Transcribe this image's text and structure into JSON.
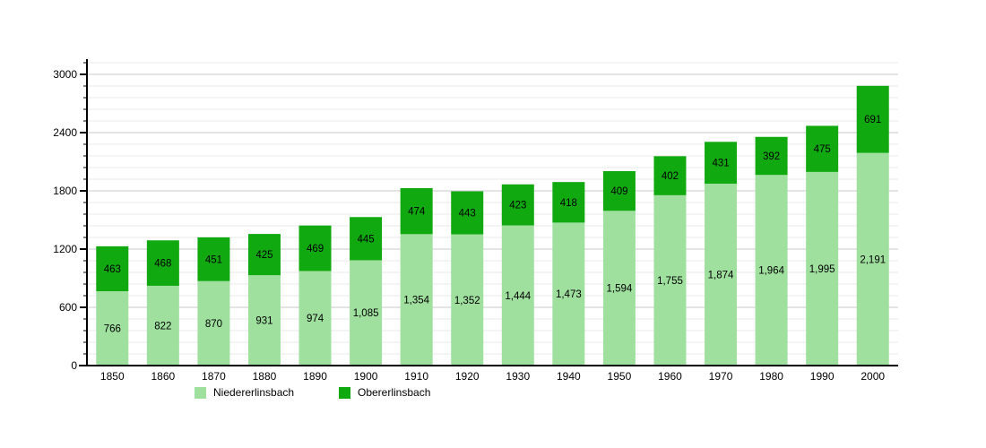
{
  "chart_data": {
    "type": "bar",
    "stacked": true,
    "title": "",
    "xlabel": "",
    "ylabel": "",
    "categories": [
      "1850",
      "1860",
      "1870",
      "1880",
      "1890",
      "1900",
      "1910",
      "1920",
      "1930",
      "1940",
      "1950",
      "1960",
      "1970",
      "1980",
      "1990",
      "2000"
    ],
    "series": [
      {
        "name": "Niedererlinsbach",
        "color": "#9fe09f",
        "values": [
          766,
          822,
          870,
          931,
          974,
          1085,
          1354,
          1352,
          1444,
          1473,
          1594,
          1755,
          1874,
          1964,
          1995,
          2191
        ]
      },
      {
        "name": "Obererlinsbach",
        "color": "#10a910",
        "values": [
          463,
          468,
          451,
          425,
          469,
          445,
          474,
          443,
          423,
          418,
          409,
          402,
          431,
          392,
          475,
          691
        ]
      }
    ],
    "value_labels": [
      [
        "766",
        "822",
        "870",
        "931",
        "974",
        "1,085",
        "1,354",
        "1,352",
        "1,444",
        "1,473",
        "1,594",
        "1,755",
        "1,874",
        "1,964",
        "1,995",
        "2,191"
      ],
      [
        "463",
        "468",
        "451",
        "425",
        "469",
        "445",
        "474",
        "443",
        "423",
        "418",
        "409",
        "402",
        "431",
        "392",
        "475",
        "691"
      ]
    ],
    "ylim": [
      0,
      3120
    ],
    "y_major_ticks": [
      0,
      600,
      1200,
      1800,
      2400,
      3000
    ],
    "y_minor_step": 120,
    "grid": true,
    "legend_position": "bottom"
  },
  "style": {
    "axis_color": "#000000",
    "major_grid_color": "#c8c8c8",
    "minor_grid_color": "#e9e9e9",
    "label_color": "#000000",
    "background": "#ffffff"
  }
}
